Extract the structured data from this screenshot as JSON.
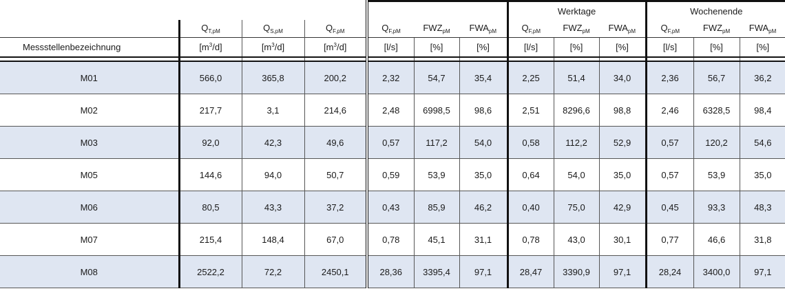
{
  "table": {
    "row_label_header": "Messstellenbezeichnung",
    "groups": {
      "werktage": "Werktage",
      "wochenende": "Wochenende"
    },
    "symbols": {
      "qt": {
        "base": "Q",
        "sub": "T,pM"
      },
      "qs": {
        "base": "Q",
        "sub": "S,pM"
      },
      "qf": {
        "base": "Q",
        "sub": "F,pM"
      },
      "fwz": {
        "base": "FWZ",
        "sub": "pM"
      },
      "fwa": {
        "base": "FWA",
        "sub": "pM"
      }
    },
    "units": {
      "m3d": {
        "pre": "[m",
        "sup": "3",
        "post": "/d]"
      },
      "ls": "[l/s]",
      "pct": "[%]"
    },
    "rows": [
      {
        "name": "M01",
        "qt": "566,0",
        "qs": "365,8",
        "qf": "200,2",
        "all_qf": "2,32",
        "all_fwz": "54,7",
        "all_fwa": "35,4",
        "wt_qf": "2,25",
        "wt_fwz": "51,4",
        "wt_fwa": "34,0",
        "we_qf": "2,36",
        "we_fwz": "56,7",
        "we_fwa": "36,2"
      },
      {
        "name": "M02",
        "qt": "217,7",
        "qs": "3,1",
        "qf": "214,6",
        "all_qf": "2,48",
        "all_fwz": "6998,5",
        "all_fwa": "98,6",
        "wt_qf": "2,51",
        "wt_fwz": "8296,6",
        "wt_fwa": "98,8",
        "we_qf": "2,46",
        "we_fwz": "6328,5",
        "we_fwa": "98,4"
      },
      {
        "name": "M03",
        "qt": "92,0",
        "qs": "42,3",
        "qf": "49,6",
        "all_qf": "0,57",
        "all_fwz": "117,2",
        "all_fwa": "54,0",
        "wt_qf": "0,58",
        "wt_fwz": "112,2",
        "wt_fwa": "52,9",
        "we_qf": "0,57",
        "we_fwz": "120,2",
        "we_fwa": "54,6"
      },
      {
        "name": "M05",
        "qt": "144,6",
        "qs": "94,0",
        "qf": "50,7",
        "all_qf": "0,59",
        "all_fwz": "53,9",
        "all_fwa": "35,0",
        "wt_qf": "0,64",
        "wt_fwz": "54,0",
        "wt_fwa": "35,0",
        "we_qf": "0,57",
        "we_fwz": "53,9",
        "we_fwa": "35,0"
      },
      {
        "name": "M06",
        "qt": "80,5",
        "qs": "43,3",
        "qf": "37,2",
        "all_qf": "0,43",
        "all_fwz": "85,9",
        "all_fwa": "46,2",
        "wt_qf": "0,40",
        "wt_fwz": "75,0",
        "wt_fwa": "42,9",
        "we_qf": "0,45",
        "we_fwz": "93,3",
        "we_fwa": "48,3"
      },
      {
        "name": "M07",
        "qt": "215,4",
        "qs": "148,4",
        "qf": "67,0",
        "all_qf": "0,78",
        "all_fwz": "45,1",
        "all_fwa": "31,1",
        "wt_qf": "0,78",
        "wt_fwz": "43,0",
        "wt_fwa": "30,1",
        "we_qf": "0,77",
        "we_fwz": "46,6",
        "we_fwa": "31,8"
      },
      {
        "name": "M08",
        "qt": "2522,2",
        "qs": "72,2",
        "qf": "2450,1",
        "all_qf": "28,36",
        "all_fwz": "3395,4",
        "all_fwa": "97,1",
        "wt_qf": "28,47",
        "wt_fwz": "3390,9",
        "wt_fwa": "97,1",
        "we_qf": "28,24",
        "we_fwz": "3400,0",
        "we_fwa": "97,1"
      }
    ],
    "colors": {
      "shaded_row": "#dfe6f2",
      "plain_row": "#ffffff",
      "rule": "#111111"
    }
  }
}
